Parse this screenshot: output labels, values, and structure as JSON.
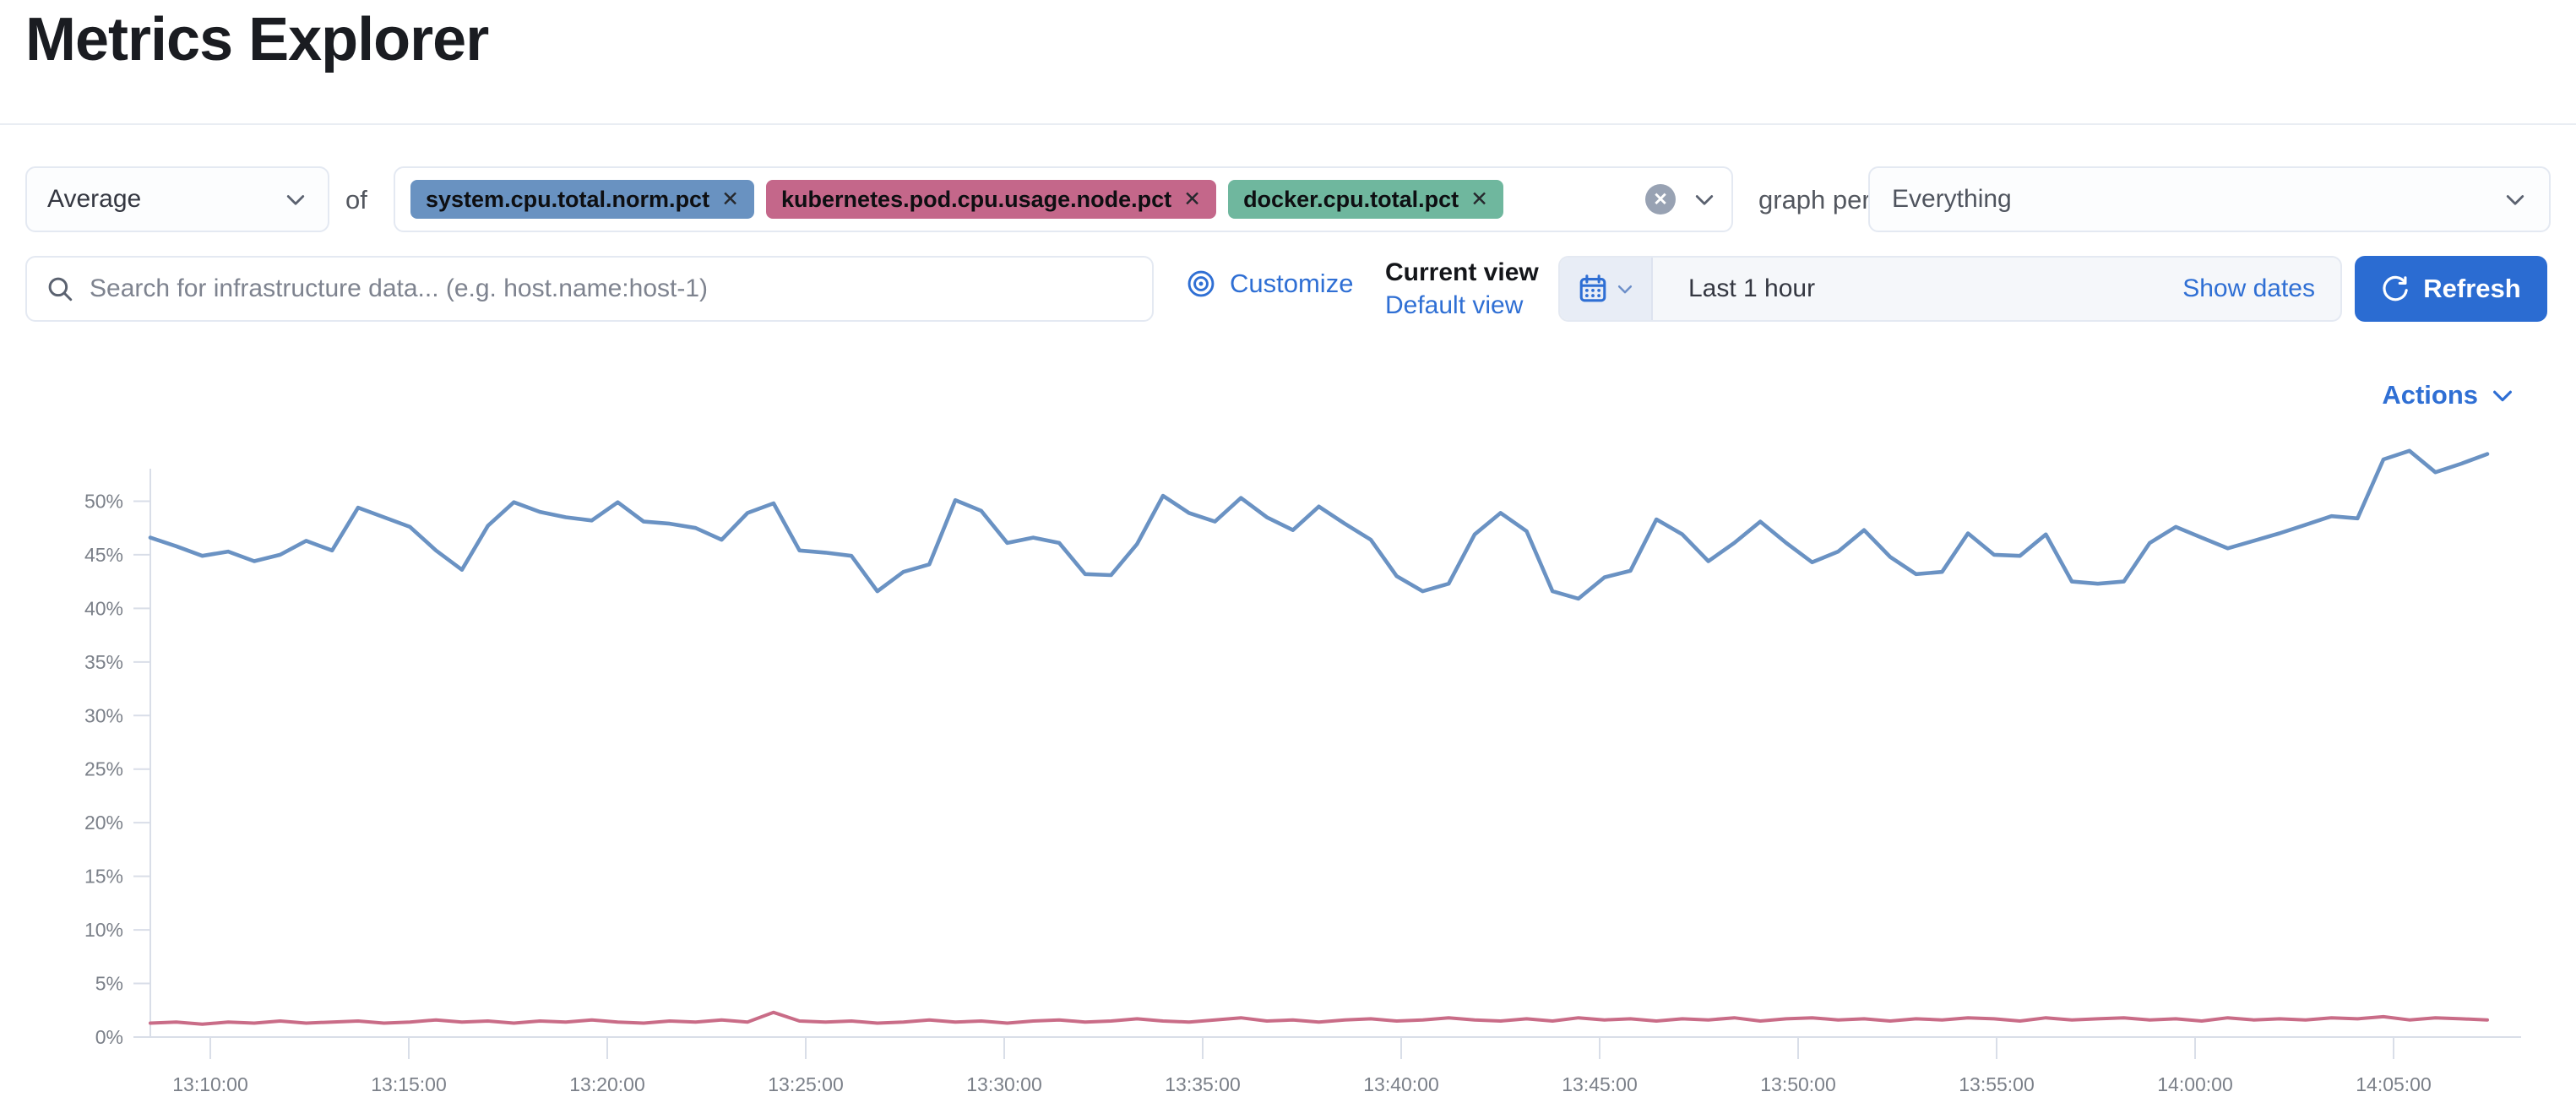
{
  "page": {
    "title": "Metrics Explorer"
  },
  "toolbar": {
    "aggregation": {
      "value": "Average"
    },
    "of_label": "of",
    "metrics": [
      {
        "label": "system.cpu.total.norm.pct",
        "color": "#6992C1"
      },
      {
        "label": "kubernetes.pod.cpu.usage.node.pct",
        "color": "#C4678A"
      },
      {
        "label": "docker.cpu.total.pct",
        "color": "#6FB79E"
      }
    ],
    "graph_per_label": "graph per",
    "group_by": {
      "value": "Everything"
    }
  },
  "searchbar": {
    "value": "",
    "placeholder": "Search for infrastructure data... (e.g. host.name:host-1)"
  },
  "view_controls": {
    "customize_label": "Customize",
    "current_view_label": "Current view",
    "view_name": "Default view"
  },
  "timepicker": {
    "range_label": "Last 1 hour",
    "show_dates_label": "Show dates",
    "refresh_label": "Refresh"
  },
  "chart_actions": {
    "label": "Actions"
  },
  "colors": {
    "primary_blue": "#2b6cd2",
    "link_blue": "#2f6fd4",
    "axis_gray": "#7b8089",
    "axis_line": "#d9dee8"
  },
  "chart_data": {
    "type": "line",
    "title": "",
    "xlabel": "",
    "ylabel": "",
    "ylim": [
      0,
      55
    ],
    "grid": false,
    "legend_position": "none",
    "y_tick_step_pct": 5,
    "y_ticks": [
      "0%",
      "5%",
      "10%",
      "15%",
      "20%",
      "25%",
      "30%",
      "35%",
      "40%",
      "45%",
      "50%"
    ],
    "x_ticks": [
      "13:10:00",
      "13:15:00",
      "13:20:00",
      "13:25:00",
      "13:30:00",
      "13:35:00",
      "13:40:00",
      "13:45:00",
      "13:50:00",
      "13:55:00",
      "14:00:00",
      "14:05:00"
    ],
    "series": [
      {
        "name": "system.cpu.total.norm.pct",
        "color": "#6A92C3",
        "unit": "%",
        "values": [
          46.6,
          45.8,
          44.9,
          45.3,
          44.4,
          45.0,
          46.3,
          45.4,
          49.4,
          48.5,
          47.6,
          45.4,
          43.6,
          47.7,
          49.9,
          49.0,
          48.5,
          48.2,
          49.9,
          48.1,
          47.9,
          47.5,
          46.4,
          48.9,
          49.8,
          45.4,
          45.2,
          44.9,
          41.6,
          43.4,
          44.1,
          50.1,
          49.1,
          46.1,
          46.6,
          46.1,
          43.2,
          43.1,
          46.0,
          50.5,
          48.9,
          48.1,
          50.3,
          48.5,
          47.3,
          49.5,
          47.9,
          46.4,
          43.0,
          41.6,
          42.3,
          46.9,
          48.9,
          47.2,
          41.6,
          40.9,
          42.9,
          43.5,
          48.3,
          46.9,
          44.4,
          46.1,
          48.1,
          46.1,
          44.3,
          45.3,
          47.3,
          44.8,
          43.2,
          43.4,
          47.0,
          45.0,
          44.9,
          46.9,
          42.5,
          42.3,
          42.5,
          46.1,
          47.6,
          46.6,
          45.6,
          46.3,
          47.0,
          47.8,
          48.6,
          48.4,
          53.9,
          54.7,
          52.7,
          53.5,
          54.4
        ]
      },
      {
        "name": "kubernetes.pod.cpu.usage.node.pct",
        "color": "#C96C87",
        "unit": "%",
        "values": [
          1.3,
          1.4,
          1.2,
          1.4,
          1.3,
          1.5,
          1.3,
          1.4,
          1.5,
          1.3,
          1.4,
          1.6,
          1.4,
          1.5,
          1.3,
          1.5,
          1.4,
          1.6,
          1.4,
          1.3,
          1.5,
          1.4,
          1.6,
          1.4,
          2.3,
          1.5,
          1.4,
          1.5,
          1.3,
          1.4,
          1.6,
          1.4,
          1.5,
          1.3,
          1.5,
          1.6,
          1.4,
          1.5,
          1.7,
          1.5,
          1.4,
          1.6,
          1.8,
          1.5,
          1.6,
          1.4,
          1.6,
          1.7,
          1.5,
          1.6,
          1.8,
          1.6,
          1.5,
          1.7,
          1.5,
          1.8,
          1.6,
          1.7,
          1.5,
          1.7,
          1.6,
          1.8,
          1.5,
          1.7,
          1.8,
          1.6,
          1.7,
          1.5,
          1.7,
          1.6,
          1.8,
          1.7,
          1.5,
          1.8,
          1.6,
          1.7,
          1.8,
          1.6,
          1.7,
          1.5,
          1.8,
          1.6,
          1.7,
          1.6,
          1.8,
          1.7,
          1.9,
          1.6,
          1.8,
          1.7,
          1.6
        ]
      }
    ]
  }
}
